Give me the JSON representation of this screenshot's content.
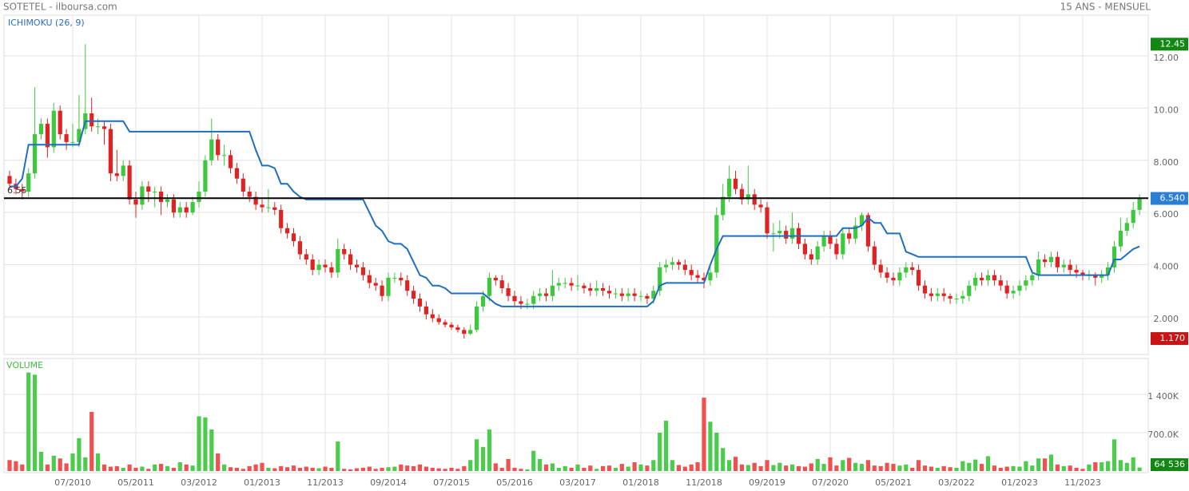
{
  "header": {
    "title": "SOTETEL - ilboursa.com",
    "period": "15 ANS - MENSUEL"
  },
  "chart_data": [
    {
      "type": "candlestick",
      "title": "ICHIMOKU (26, 9)",
      "up_color": "#3ec83e",
      "down_color": "#e02222",
      "categories": [
        null,
        null,
        null,
        null,
        null,
        null,
        null,
        null,
        null,
        null,
        "07/2010",
        null,
        null,
        null,
        null,
        null,
        null,
        null,
        null,
        null,
        "05/2011",
        null,
        null,
        null,
        null,
        null,
        null,
        null,
        null,
        null,
        "03/2012",
        null,
        null,
        null,
        null,
        null,
        null,
        null,
        null,
        null,
        "01/2013",
        null,
        null,
        null,
        null,
        null,
        null,
        null,
        null,
        null,
        "11/2013",
        null,
        null,
        null,
        null,
        null,
        null,
        null,
        null,
        null,
        "09/2014",
        null,
        null,
        null,
        null,
        null,
        null,
        null,
        null,
        null,
        "07/2015",
        null,
        null,
        null,
        null,
        null,
        null,
        null,
        null,
        null,
        "05/2016",
        null,
        null,
        null,
        null,
        null,
        null,
        null,
        null,
        null,
        "03/2017",
        null,
        null,
        null,
        null,
        null,
        null,
        null,
        null,
        null,
        "01/2018",
        null,
        null,
        null,
        null,
        null,
        null,
        null,
        null,
        null,
        "11/2018",
        null,
        null,
        null,
        null,
        null,
        null,
        null,
        null,
        null,
        "09/2019",
        null,
        null,
        null,
        null,
        null,
        null,
        null,
        null,
        null,
        "07/2020",
        null,
        null,
        null,
        null,
        null,
        null,
        null,
        null,
        null,
        "05/2021",
        null,
        null,
        null,
        null,
        null,
        null,
        null,
        null,
        null,
        "03/2022",
        null,
        null,
        null,
        null,
        null,
        null,
        null,
        null,
        null,
        "01/2023",
        null,
        null,
        null,
        null,
        null,
        null,
        null,
        null,
        null,
        "11/2023",
        null,
        null,
        null,
        null,
        null,
        null,
        null,
        null,
        null
      ],
      "open": [
        7.4,
        7.1,
        6.9,
        6.8,
        7.5,
        9.0,
        9.4,
        8.5,
        9.9,
        9.0,
        8.7,
        8.7,
        9.2,
        9.8,
        9.3,
        9.3,
        9.2,
        7.5,
        7.4,
        7.8,
        6.5,
        6.3,
        7.0,
        6.8,
        6.8,
        6.4,
        6.5,
        6.0,
        6.2,
        6.0,
        6.4,
        6.8,
        8.0,
        8.8,
        8.2,
        8.2,
        7.7,
        7.3,
        6.8,
        6.6,
        6.3,
        6.2,
        6.2,
        6.1,
        5.4,
        5.2,
        4.9,
        4.4,
        4.2,
        3.8,
        4.0,
        3.9,
        3.7,
        4.6,
        4.4,
        4.0,
        3.9,
        3.6,
        3.3,
        3.2,
        2.8,
        3.5,
        3.5,
        3.4,
        3.0,
        2.7,
        2.4,
        2.1,
        1.95,
        1.8,
        1.7,
        1.6,
        1.5,
        1.35,
        1.5,
        2.4,
        2.8,
        3.5,
        3.4,
        3.1,
        2.8,
        2.6,
        2.5,
        2.5,
        2.8,
        2.9,
        2.8,
        3.2,
        3.3,
        3.3,
        3.2,
        3.2,
        3.1,
        3.0,
        3.1,
        3.0,
        2.9,
        2.9,
        2.8,
        2.9,
        2.8,
        2.8,
        2.7,
        3.0,
        3.9,
        4.0,
        4.1,
        4.0,
        3.8,
        3.6,
        3.5,
        3.4,
        3.7,
        5.9,
        6.6,
        7.3,
        6.9,
        6.5,
        6.7,
        6.3,
        6.2,
        5.2,
        5.2,
        5.3,
        5.0,
        5.4,
        4.8,
        4.4,
        4.2,
        4.7,
        5.1,
        4.8,
        4.4,
        5.2,
        5.0,
        5.5,
        5.9,
        4.7,
        4.0,
        3.7,
        3.5,
        3.4,
        3.7,
        3.9,
        3.8,
        3.2,
        2.9,
        2.8,
        2.9,
        2.8,
        2.7,
        2.7,
        2.8,
        3.2,
        3.5,
        3.4,
        3.6,
        3.4,
        3.2,
        2.9,
        3.0,
        3.2,
        3.4,
        3.6,
        4.2,
        4.1,
        4.3,
        3.9,
        4.0,
        3.8,
        3.7,
        3.6,
        3.6,
        3.5,
        3.6,
        3.9,
        4.7,
        5.3,
        5.6,
        6.1
      ],
      "high": [
        7.6,
        7.3,
        7.1,
        7.7,
        10.8,
        9.6,
        9.6,
        10.2,
        10.1,
        9.2,
        9.4,
        10.5,
        12.45,
        10.4,
        9.6,
        9.5,
        9.4,
        8.4,
        8.0,
        8.0,
        6.8,
        7.2,
        7.2,
        7.0,
        7.0,
        6.7,
        6.7,
        6.4,
        6.4,
        6.6,
        7.2,
        8.2,
        9.6,
        9.0,
        8.6,
        8.4,
        7.9,
        7.5,
        7.0,
        6.8,
        6.5,
        6.9,
        6.4,
        6.3,
        5.6,
        5.4,
        5.1,
        4.6,
        4.4,
        4.2,
        4.2,
        4.1,
        5.0,
        4.8,
        4.6,
        4.2,
        4.1,
        3.8,
        3.5,
        3.4,
        3.7,
        3.7,
        3.7,
        3.6,
        3.2,
        2.9,
        2.6,
        2.3,
        2.1,
        1.9,
        1.8,
        1.7,
        1.6,
        1.7,
        2.6,
        3.0,
        3.7,
        3.6,
        3.6,
        3.3,
        3.0,
        2.8,
        2.7,
        3.0,
        3.1,
        3.1,
        3.8,
        3.5,
        3.5,
        3.5,
        3.6,
        3.3,
        3.3,
        3.4,
        3.3,
        3.2,
        3.1,
        3.1,
        3.1,
        3.1,
        3.0,
        2.9,
        3.2,
        4.1,
        4.2,
        4.3,
        4.2,
        4.2,
        4.0,
        3.8,
        3.7,
        4.0,
        6.2,
        7.1,
        7.8,
        7.6,
        7.1,
        7.8,
        6.9,
        6.5,
        6.4,
        5.6,
        5.7,
        5.5,
        6.0,
        5.6,
        5.0,
        4.6,
        4.9,
        5.3,
        5.3,
        5.0,
        5.4,
        5.4,
        5.8,
        6.0,
        6.0,
        4.9,
        4.2,
        3.9,
        3.7,
        3.9,
        4.1,
        4.1,
        4.0,
        3.4,
        3.1,
        3.1,
        3.1,
        2.9,
        2.9,
        3.0,
        3.4,
        3.7,
        3.7,
        3.8,
        3.8,
        3.6,
        3.4,
        3.2,
        3.4,
        3.6,
        3.8,
        4.5,
        4.4,
        4.5,
        4.5,
        4.2,
        4.2,
        4.0,
        3.8,
        3.8,
        3.7,
        3.8,
        4.1,
        4.9,
        5.8,
        5.8,
        6.4,
        6.7
      ],
      "low": [
        6.9,
        6.7,
        6.5,
        6.6,
        7.3,
        8.8,
        8.1,
        8.3,
        8.8,
        8.4,
        8.5,
        8.5,
        9.0,
        9.1,
        9.0,
        8.6,
        7.2,
        7.2,
        7.2,
        6.3,
        5.8,
        6.1,
        6.4,
        6.2,
        5.9,
        6.2,
        5.8,
        5.8,
        5.8,
        5.9,
        6.2,
        6.6,
        7.8,
        8.0,
        7.8,
        7.5,
        7.1,
        6.6,
        6.4,
        6.1,
        6.0,
        6.0,
        5.9,
        5.2,
        5.0,
        4.7,
        4.2,
        4.0,
        3.6,
        3.6,
        3.7,
        3.5,
        3.5,
        4.2,
        3.8,
        3.7,
        3.4,
        3.1,
        3.0,
        2.6,
        2.6,
        3.3,
        3.2,
        2.8,
        2.5,
        2.2,
        1.9,
        1.8,
        1.7,
        1.6,
        1.5,
        1.4,
        1.17,
        1.3,
        1.4,
        2.2,
        2.6,
        3.2,
        2.9,
        2.6,
        2.4,
        2.3,
        2.3,
        2.3,
        2.6,
        2.6,
        2.6,
        3.0,
        3.1,
        3.0,
        3.0,
        2.9,
        2.8,
        2.8,
        2.8,
        2.7,
        2.7,
        2.6,
        2.6,
        2.6,
        2.6,
        2.5,
        2.5,
        2.8,
        3.7,
        3.8,
        3.8,
        3.6,
        3.4,
        3.3,
        3.1,
        3.2,
        3.5,
        5.7,
        6.4,
        6.7,
        6.3,
        6.3,
        6.1,
        6.0,
        5.0,
        4.5,
        5.0,
        4.8,
        4.8,
        4.6,
        4.2,
        4.0,
        4.0,
        4.5,
        4.6,
        4.2,
        4.2,
        4.8,
        4.8,
        5.3,
        4.5,
        3.8,
        3.5,
        3.3,
        3.2,
        3.2,
        3.5,
        3.6,
        3.0,
        2.7,
        2.6,
        2.6,
        2.6,
        2.5,
        2.5,
        2.5,
        2.6,
        3.0,
        3.2,
        3.2,
        3.2,
        3.0,
        2.7,
        2.7,
        2.8,
        3.0,
        3.2,
        3.4,
        3.9,
        3.9,
        3.7,
        3.7,
        3.6,
        3.5,
        3.4,
        3.4,
        3.2,
        3.3,
        3.4,
        3.7,
        4.5,
        5.1,
        5.4,
        5.9
      ],
      "close": [
        7.1,
        6.9,
        6.8,
        7.5,
        9.0,
        9.4,
        8.5,
        9.9,
        9.0,
        8.7,
        8.7,
        9.2,
        9.8,
        9.3,
        9.3,
        9.2,
        7.5,
        7.4,
        7.8,
        6.5,
        6.3,
        7.0,
        6.8,
        6.8,
        6.4,
        6.5,
        6.0,
        6.2,
        6.0,
        6.4,
        6.8,
        8.0,
        8.8,
        8.2,
        8.2,
        7.7,
        7.3,
        6.8,
        6.6,
        6.3,
        6.2,
        6.2,
        6.1,
        5.4,
        5.2,
        4.9,
        4.4,
        4.2,
        3.8,
        4.0,
        3.9,
        3.7,
        4.6,
        4.4,
        4.0,
        3.9,
        3.6,
        3.3,
        3.2,
        2.8,
        3.5,
        3.5,
        3.4,
        3.0,
        2.7,
        2.4,
        2.1,
        1.95,
        1.8,
        1.7,
        1.6,
        1.5,
        1.35,
        1.5,
        2.4,
        2.8,
        3.5,
        3.4,
        3.1,
        2.8,
        2.6,
        2.5,
        2.5,
        2.8,
        2.9,
        2.8,
        3.2,
        3.3,
        3.3,
        3.2,
        3.2,
        3.1,
        3.0,
        3.1,
        3.0,
        2.9,
        2.9,
        2.8,
        2.9,
        2.8,
        2.8,
        2.7,
        3.0,
        3.9,
        4.0,
        4.1,
        4.0,
        3.8,
        3.6,
        3.5,
        3.4,
        3.7,
        5.9,
        6.6,
        7.3,
        6.9,
        6.5,
        6.7,
        6.3,
        6.2,
        5.2,
        5.2,
        5.3,
        5.0,
        5.4,
        4.8,
        4.4,
        4.2,
        4.7,
        5.1,
        4.8,
        4.4,
        5.2,
        5.0,
        5.5,
        5.9,
        4.7,
        4.0,
        3.7,
        3.5,
        3.4,
        3.7,
        3.9,
        3.8,
        3.2,
        2.9,
        2.8,
        2.9,
        2.8,
        2.7,
        2.7,
        2.8,
        3.2,
        3.5,
        3.4,
        3.6,
        3.4,
        3.2,
        2.9,
        3.0,
        3.2,
        3.4,
        3.6,
        4.2,
        4.1,
        4.3,
        3.9,
        4.0,
        3.8,
        3.7,
        3.6,
        3.6,
        3.5,
        3.6,
        3.9,
        4.7,
        5.3,
        5.6,
        6.1,
        6.54
      ],
      "line": {
        "color": "#1f6fc0",
        "values": [
          7.0,
          7.0,
          7.3,
          8.6,
          8.6,
          8.6,
          8.6,
          8.6,
          8.6,
          8.6,
          8.6,
          8.6,
          9.5,
          9.5,
          9.5,
          9.5,
          9.5,
          9.5,
          9.5,
          9.1,
          9.1,
          9.1,
          9.1,
          9.1,
          9.1,
          9.1,
          9.1,
          9.1,
          9.1,
          9.1,
          9.1,
          9.1,
          9.1,
          9.1,
          9.1,
          9.1,
          9.1,
          9.1,
          9.1,
          8.4,
          7.8,
          7.8,
          7.7,
          7.1,
          7.1,
          6.8,
          6.6,
          6.5,
          6.5,
          6.5,
          6.5,
          6.5,
          6.5,
          6.5,
          6.5,
          6.5,
          6.5,
          6.0,
          5.5,
          5.3,
          4.9,
          4.8,
          4.8,
          4.6,
          4.1,
          3.6,
          3.5,
          3.2,
          3.2,
          3.1,
          2.9,
          2.9,
          2.9,
          2.9,
          2.9,
          2.9,
          2.7,
          2.5,
          2.4,
          2.4,
          2.4,
          2.4,
          2.4,
          2.4,
          2.4,
          2.4,
          2.4,
          2.4,
          2.4,
          2.4,
          2.4,
          2.4,
          2.4,
          2.4,
          2.4,
          2.4,
          2.4,
          2.4,
          2.4,
          2.4,
          2.4,
          2.4,
          2.6,
          3.2,
          3.3,
          3.3,
          3.3,
          3.3,
          3.3,
          3.3,
          3.3,
          4.0,
          4.6,
          5.1,
          5.1,
          5.1,
          5.1,
          5.1,
          5.1,
          5.1,
          5.1,
          5.1,
          5.1,
          5.1,
          5.1,
          5.1,
          5.1,
          5.1,
          5.1,
          5.1,
          5.1,
          5.1,
          5.4,
          5.4,
          5.4,
          5.5,
          5.8,
          5.6,
          5.6,
          5.2,
          5.2,
          5.2,
          4.5,
          4.4,
          4.3,
          4.3,
          4.3,
          4.3,
          4.3,
          4.3,
          4.3,
          4.3,
          4.3,
          4.3,
          4.3,
          4.3,
          4.3,
          4.3,
          4.3,
          4.3,
          4.3,
          4.3,
          3.7,
          3.6,
          3.6,
          3.6,
          3.6,
          3.6,
          3.6,
          3.6,
          3.6,
          3.6,
          3.6,
          3.6,
          3.6,
          4.2,
          4.2,
          4.4,
          4.6,
          4.7
        ]
      },
      "ylim": [
        0.56,
        13.47
      ],
      "yticks": [
        {
          "value": 2,
          "label": "2.000"
        },
        {
          "value": 4,
          "label": "4.000"
        },
        {
          "value": 6,
          "label": "6.000"
        },
        {
          "value": 8,
          "label": "8.000"
        },
        {
          "value": 10,
          "label": "10.00"
        },
        {
          "value": 12,
          "label": "12.00"
        }
      ],
      "reference_line": {
        "value": 6.55,
        "label": "6.55"
      },
      "price_markers": [
        {
          "value": 12.45,
          "label": "12.45",
          "color": "#118811"
        },
        {
          "value": 6.54,
          "label": "6.540",
          "color": "#2a7fd4"
        },
        {
          "value": 1.17,
          "label": "1.170",
          "color": "#c81414"
        }
      ],
      "grid": true
    },
    {
      "type": "volume",
      "title": "VOLUME",
      "up_color": "#4ccc4c",
      "down_color": "#f05050",
      "values": [
        200000,
        180000,
        120000,
        1800000,
        1760000,
        350000,
        120000,
        280000,
        230000,
        140000,
        320000,
        600000,
        250000,
        1080000,
        320000,
        120000,
        80000,
        90000,
        60000,
        120000,
        60000,
        80000,
        40000,
        120000,
        130000,
        90000,
        60000,
        160000,
        120000,
        100000,
        1000000,
        980000,
        760000,
        320000,
        120000,
        70000,
        60000,
        40000,
        90000,
        120000,
        150000,
        60000,
        50000,
        90000,
        70000,
        100000,
        60000,
        80000,
        60000,
        50000,
        80000,
        60000,
        540000,
        40000,
        30000,
        50000,
        60000,
        80000,
        40000,
        60000,
        70000,
        80000,
        120000,
        100000,
        90000,
        120000,
        80000,
        60000,
        50000,
        40000,
        60000,
        40000,
        90000,
        200000,
        580000,
        440000,
        760000,
        140000,
        60000,
        220000,
        60000,
        40000,
        30000,
        370000,
        220000,
        120000,
        140000,
        60000,
        90000,
        60000,
        120000,
        60000,
        100000,
        40000,
        90000,
        100000,
        60000,
        130000,
        80000,
        160000,
        120000,
        100000,
        200000,
        700000,
        920000,
        200000,
        110000,
        80000,
        120000,
        160000,
        1340000,
        900000,
        700000,
        420000,
        200000,
        260000,
        120000,
        110000,
        150000,
        90000,
        200000,
        110000,
        150000,
        100000,
        120000,
        90000,
        80000,
        140000,
        220000,
        130000,
        250000,
        100000,
        200000,
        240000,
        150000,
        130000,
        200000,
        100000,
        90000,
        150000,
        130000,
        100000,
        120000,
        60000,
        200000,
        100000,
        80000,
        60000,
        90000,
        70000,
        60000,
        180000,
        150000,
        210000,
        130000,
        270000,
        100000,
        60000,
        80000,
        90000,
        80000,
        180000,
        100000,
        230000,
        230000,
        300000,
        120000,
        90000,
        100000,
        60000,
        40000,
        120000,
        160000,
        160000,
        180000,
        580000,
        200000,
        150000,
        250000,
        64536
      ],
      "ylim": [
        0,
        2056000
      ],
      "yticks": [
        {
          "value": 700000,
          "label": "700.0K"
        },
        {
          "value": 1400000,
          "label": "1 400K"
        }
      ],
      "last_marker": {
        "value": 64536,
        "label": "64 536",
        "color": "#118811"
      },
      "grid": true
    }
  ]
}
